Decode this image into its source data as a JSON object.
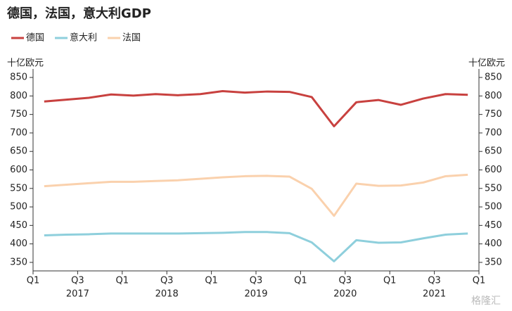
{
  "chart_data": {
    "type": "line",
    "title": "德国，法国，意大利GDP",
    "y_label": "十亿欧元",
    "y2_label": "十亿欧元",
    "x_tick_labels": [
      "Q1",
      "Q3",
      "Q1",
      "Q3",
      "Q1",
      "Q3",
      "Q1",
      "Q3",
      "Q1",
      "Q3",
      "Q1"
    ],
    "year_labels": [
      "2017",
      "2018",
      "2019",
      "2020",
      "2021"
    ],
    "series": [
      {
        "name": "德国",
        "color": "#c8413f",
        "values": [
          785,
          790,
          795,
          804,
          801,
          805,
          802,
          805,
          813,
          809,
          812,
          811,
          797,
          718,
          783,
          789,
          776,
          793,
          805,
          803
        ]
      },
      {
        "name": "意大利",
        "color": "#8ecfdc",
        "values": [
          423,
          425,
          426,
          428,
          428,
          428,
          428,
          429,
          430,
          432,
          432,
          429,
          404,
          353,
          410,
          403,
          404,
          415,
          425,
          428
        ]
      },
      {
        "name": "法国",
        "color": "#fad1ad",
        "values": [
          556,
          560,
          564,
          568,
          568,
          570,
          572,
          576,
          580,
          583,
          584,
          582,
          549,
          476,
          563,
          557,
          558,
          566,
          583,
          587
        ]
      }
    ],
    "ylim": [
      327,
      873
    ],
    "yticks": [
      350,
      400,
      450,
      500,
      550,
      600,
      650,
      700,
      750,
      800,
      850
    ],
    "y2lim": [
      327,
      873
    ],
    "y2ticks": [
      350,
      400,
      450,
      500,
      550,
      600,
      650,
      700,
      750,
      800,
      850
    ],
    "watermark": "格隆汇"
  }
}
